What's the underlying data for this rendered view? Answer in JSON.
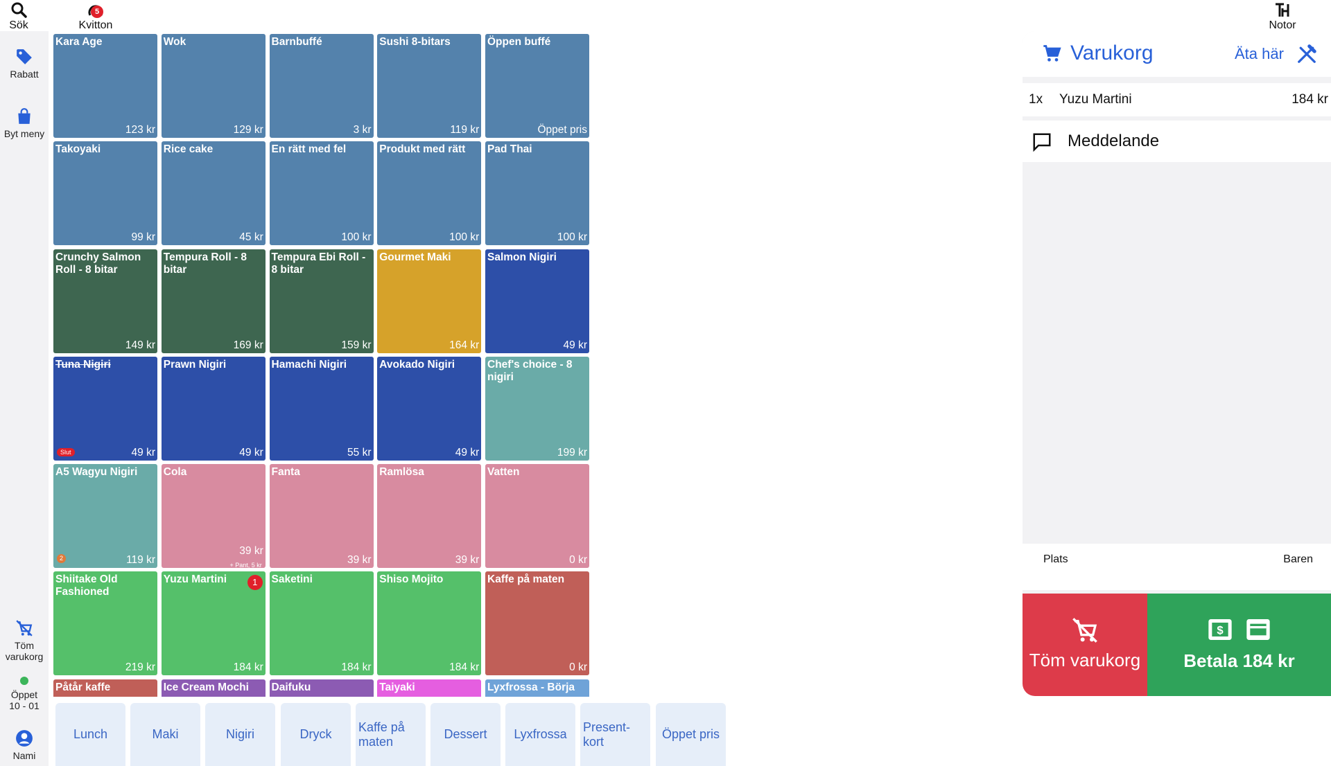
{
  "topbar": {
    "search_label": "Sök",
    "receipts_label": "Kvitton",
    "receipts_badge": "5",
    "notes_label": "Notor"
  },
  "sidebar": {
    "discount_label": "Rabatt",
    "change_menu_label": "Byt meny",
    "clear_cart_label": "Töm varukorg",
    "status_label": "Öppet",
    "hours_label": "10 - 01",
    "user_label": "Nami"
  },
  "products": [
    {
      "name": "Kara Age",
      "price": "123 kr",
      "color": "blue"
    },
    {
      "name": "Wok",
      "price": "129 kr",
      "color": "blue"
    },
    {
      "name": "Barnbuffé",
      "price": "3 kr",
      "color": "blue"
    },
    {
      "name": "Sushi 8-bitars",
      "price": "119 kr",
      "color": "blue"
    },
    {
      "name": "Öppen buffé",
      "price": "Öppet pris",
      "color": "blue"
    },
    {
      "name": "Takoyaki",
      "price": "99 kr",
      "color": "blue"
    },
    {
      "name": "Rice cake",
      "price": "45 kr",
      "color": "blue"
    },
    {
      "name": "En rätt med fel",
      "price": "100 kr",
      "color": "blue"
    },
    {
      "name": "Produkt med rätt",
      "price": "100 kr",
      "color": "blue"
    },
    {
      "name": "Pad Thai",
      "price": "100 kr",
      "color": "blue"
    },
    {
      "name": "Crunchy Salmon Roll - 8 bitar",
      "price": "149 kr",
      "color": "green-dark"
    },
    {
      "name": "Tempura Roll - 8 bitar",
      "price": "169 kr",
      "color": "green-dark"
    },
    {
      "name": "Tempura Ebi Roll - 8 bitar",
      "price": "159 kr",
      "color": "green-dark"
    },
    {
      "name": "Gourmet Maki",
      "price": "164 kr",
      "color": "yellow"
    },
    {
      "name": "Salmon Nigiri",
      "price": "49 kr",
      "color": "navy"
    },
    {
      "name": "Tuna Nigiri",
      "price": "49 kr",
      "color": "navy",
      "sold_out": "Slut"
    },
    {
      "name": "Prawn Nigiri",
      "price": "49 kr",
      "color": "navy"
    },
    {
      "name": "Hamachi Nigiri",
      "price": "55 kr",
      "color": "navy"
    },
    {
      "name": "Avokado Nigiri",
      "price": "49 kr",
      "color": "navy"
    },
    {
      "name": "Chef's choice - 8 nigiri",
      "price": "199 kr",
      "color": "teal"
    },
    {
      "name": "A5 Wagyu Nigiri",
      "price": "119 kr",
      "color": "teal",
      "count": "2"
    },
    {
      "name": "Cola",
      "price": "39 kr",
      "color": "pink",
      "sub": "+ Pant, 5 kr"
    },
    {
      "name": "Fanta",
      "price": "39 kr",
      "color": "pink"
    },
    {
      "name": "Ramlösa",
      "price": "39 kr",
      "color": "pink"
    },
    {
      "name": "Vatten",
      "price": "0 kr",
      "color": "pink"
    },
    {
      "name": "Shiitake Old Fashioned",
      "price": "219 kr",
      "color": "green"
    },
    {
      "name": "Yuzu Martini",
      "price": "184 kr",
      "color": "green",
      "qty": "1"
    },
    {
      "name": "Saketini",
      "price": "184 kr",
      "color": "green"
    },
    {
      "name": "Shiso Mojito",
      "price": "184 kr",
      "color": "green"
    },
    {
      "name": "Kaffe på maten",
      "price": "0 kr",
      "color": "red"
    },
    {
      "name": "Påtår kaffe",
      "price": "",
      "color": "red"
    },
    {
      "name": "Ice Cream Mochi",
      "price": "",
      "color": "purple"
    },
    {
      "name": "Daifuku",
      "price": "",
      "color": "purple"
    },
    {
      "name": "Taiyaki",
      "price": "",
      "color": "magenta"
    },
    {
      "name": "Lyxfrossa - Börja",
      "price": "",
      "color": "lightblue"
    }
  ],
  "categories": [
    "Lunch",
    "Maki",
    "Nigiri",
    "Dryck",
    "Kaffe på maten",
    "Dessert",
    "Lyxfrossa",
    "Present-kort",
    "Öppet pris"
  ],
  "cart": {
    "title": "Varukorg",
    "dine_mode": "Äta här",
    "items": [
      {
        "qty": "1x",
        "name": "Yuzu Martini",
        "price": "184 kr"
      }
    ],
    "message_label": "Meddelande",
    "place_label": "Plats",
    "place_value": "Baren",
    "clear_button": "Töm varukorg",
    "pay_button": "Betala 184 kr"
  },
  "colors": {
    "blue": "#5482ac",
    "green-dark": "#3e6650",
    "yellow": "#d6a22a",
    "navy": "#2d4fa8",
    "teal": "#6aaba8",
    "pink": "#d88ba0",
    "green": "#55c06a",
    "red": "#c05f58",
    "purple": "#8c5bb3",
    "magenta": "#e55ee0",
    "lightblue": "#6fa3d8",
    "accent": "#2860d8",
    "danger": "#dd3b4a",
    "success": "#2fa35a"
  }
}
